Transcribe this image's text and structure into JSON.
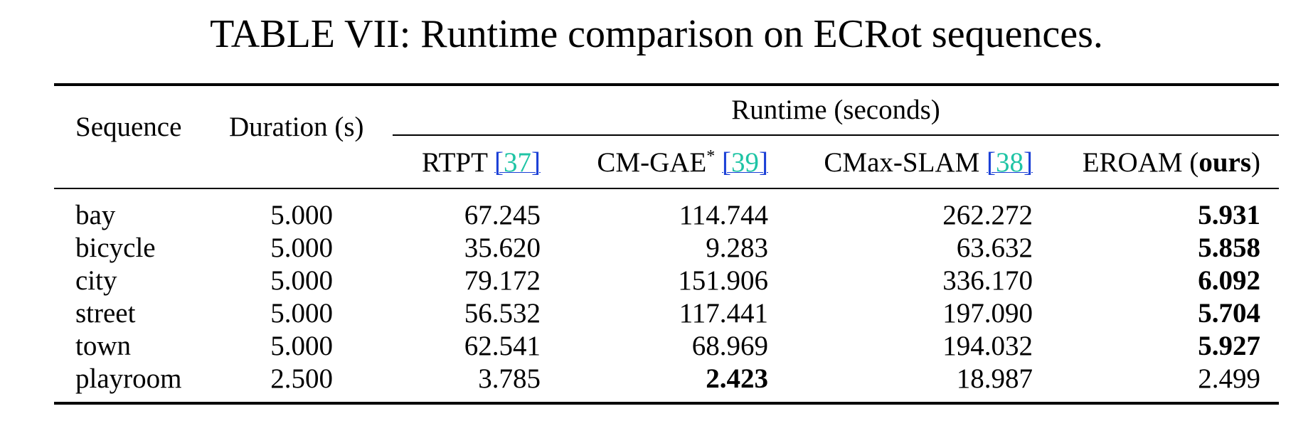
{
  "caption": "TABLE VII: Runtime comparison on ECRot sequences.",
  "header": {
    "sequence": "Sequence",
    "duration": "Duration (s)",
    "runtime_group": "Runtime (seconds)",
    "methods": [
      {
        "name": "RTPT",
        "ref_open": "[",
        "ref_num": "37",
        "ref_close": "]"
      },
      {
        "name": "CM-GAE",
        "sup": "*",
        "ref_open": "[",
        "ref_num": "39",
        "ref_close": "]"
      },
      {
        "name": "CMax-SLAM",
        "ref_open": "[",
        "ref_num": "38",
        "ref_close": "]"
      },
      {
        "name": "EROAM (",
        "ours": "ours",
        "close": ")"
      }
    ]
  },
  "rows": [
    {
      "sequence": "bay",
      "duration": "5.000",
      "rtpt": "67.245",
      "cmgae": "114.744",
      "cmax": "262.272",
      "eroam": "5.931",
      "best": "eroam"
    },
    {
      "sequence": "bicycle",
      "duration": "5.000",
      "rtpt": "35.620",
      "cmgae": "9.283",
      "cmax": "63.632",
      "eroam": "5.858",
      "best": "eroam"
    },
    {
      "sequence": "city",
      "duration": "5.000",
      "rtpt": "79.172",
      "cmgae": "151.906",
      "cmax": "336.170",
      "eroam": "6.092",
      "best": "eroam"
    },
    {
      "sequence": "street",
      "duration": "5.000",
      "rtpt": "56.532",
      "cmgae": "117.441",
      "cmax": "197.090",
      "eroam": "5.704",
      "best": "eroam"
    },
    {
      "sequence": "town",
      "duration": "5.000",
      "rtpt": "62.541",
      "cmgae": "68.969",
      "cmax": "194.032",
      "eroam": "5.927",
      "best": "eroam"
    },
    {
      "sequence": "playroom",
      "duration": "2.500",
      "rtpt": "3.785",
      "cmgae": "2.423",
      "cmax": "18.987",
      "eroam": "2.499",
      "best": "cmgae"
    }
  ]
}
